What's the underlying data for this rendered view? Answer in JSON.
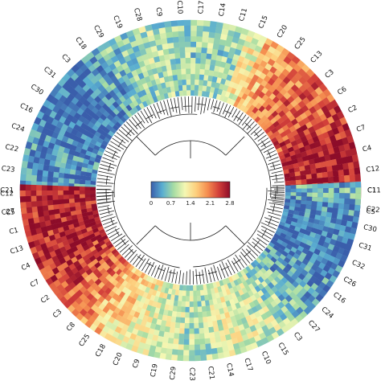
{
  "chart_data": {
    "type": "heatmap",
    "layout": "circular",
    "dendrogram": true,
    "upper_half": {
      "labels": [
        "C5",
        "C1",
        "C12",
        "C4",
        "C7",
        "C2",
        "C6",
        "C3",
        "C13",
        "C25",
        "C20",
        "C15",
        "C11",
        "C14",
        "C17",
        "C10",
        "C9",
        "C28",
        "C19",
        "C29",
        "C18",
        "C3",
        "C31",
        "C30",
        "C16",
        "C24",
        "C22",
        "C23",
        "C21",
        "C27"
      ],
      "value_profile": [
        2.5,
        2.55,
        2.6,
        2.65,
        2.6,
        2.35,
        2.25,
        2.2,
        2.1,
        2.0,
        1.7,
        1.3,
        0.8,
        0.75,
        0.7,
        0.75,
        0.8,
        0.9,
        0.75,
        0.6,
        0.4,
        0.15,
        0.05,
        0.05,
        0.1,
        0.2,
        0.3,
        0.25,
        0.35,
        0.15
      ]
    },
    "lower_half": {
      "labels": [
        "C11",
        "C22",
        "C30",
        "C31",
        "C32",
        "C26",
        "C16",
        "C24",
        "C27",
        "C3",
        "C15",
        "C10",
        "C17",
        "C14",
        "C21",
        "C23",
        "C29",
        "C19",
        "C9",
        "C20",
        "C18",
        "C25",
        "C8",
        "C3",
        "C2",
        "C7",
        "C4",
        "C13",
        "C1",
        "C5",
        "C12"
      ],
      "value_profile": [
        0.5,
        0.25,
        0.15,
        0.1,
        0.1,
        0.2,
        0.35,
        0.45,
        0.6,
        0.8,
        0.95,
        1.05,
        1.15,
        1.1,
        0.9,
        0.85,
        1.0,
        1.1,
        1.2,
        1.35,
        1.5,
        1.65,
        2.0,
        2.2,
        2.35,
        2.45,
        2.6,
        2.55,
        2.6,
        2.55,
        2.6
      ]
    },
    "colorbar": {
      "ticks": [
        "0",
        "0.7",
        "1.4",
        "2.1",
        "2.8"
      ],
      "min": 0,
      "max": 2.8,
      "colormap": [
        "#3a5eab",
        "#5aaed1",
        "#a6dca3",
        "#f4f7b3",
        "#fdcf7d",
        "#f58e50",
        "#d3403a",
        "#8d0c29"
      ]
    },
    "rings": 14
  }
}
